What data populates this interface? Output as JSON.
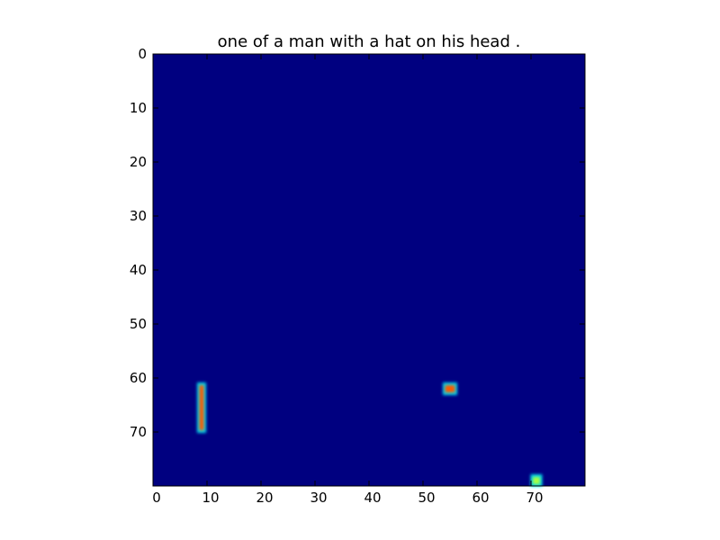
{
  "chart_data": {
    "type": "heatmap",
    "title": "one of a man with a hat on his head .",
    "xlabel": "",
    "ylabel": "",
    "grid_size": [
      80,
      80
    ],
    "xlim": [
      0,
      80
    ],
    "ylim": [
      80,
      0
    ],
    "x_ticks": [
      0,
      10,
      20,
      30,
      40,
      50,
      60,
      70
    ],
    "y_ticks": [
      0,
      10,
      20,
      30,
      40,
      50,
      60,
      70
    ],
    "colormap": "jet",
    "background_value": 0,
    "background_color": "#000080",
    "grid": false,
    "hotspots": [
      {
        "x": 9,
        "y_start": 61,
        "y_end": 70,
        "width": 1,
        "peak_color": "#ff5a00",
        "edge_color": "#00ffff"
      },
      {
        "x": 55,
        "y_start": 61,
        "y_end": 63,
        "width": 2,
        "peak_color": "#ff5a00",
        "edge_color": "#00ffff"
      },
      {
        "x": 71,
        "y_start": 78,
        "y_end": 80,
        "width": 1.5,
        "peak_color": "#a8ff40",
        "edge_color": "#00ffff"
      }
    ]
  }
}
